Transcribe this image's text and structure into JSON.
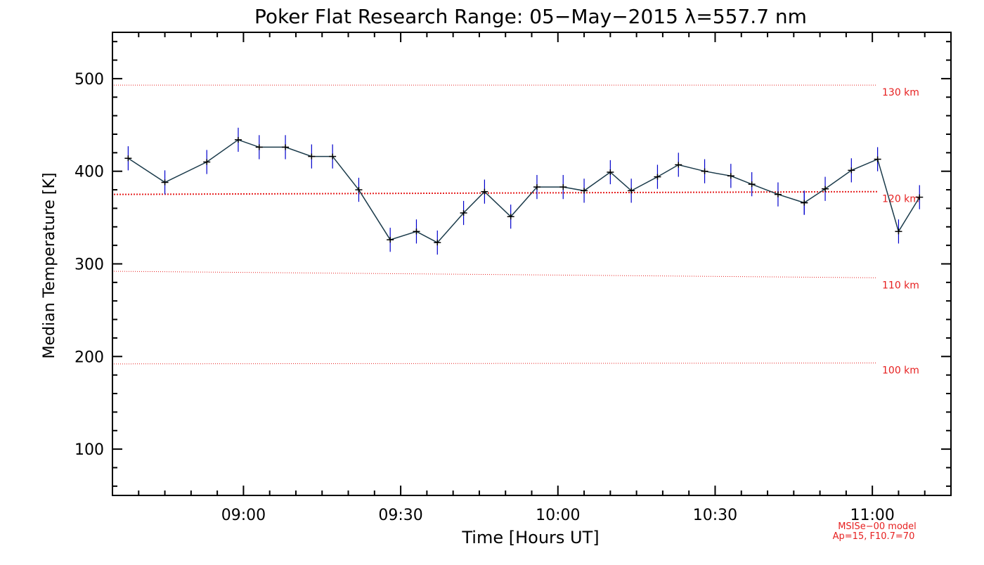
{
  "chart_data": {
    "type": "line",
    "title": "Poker Flat Research Range: 05−May−2015 λ=557.7 nm",
    "xlabel": "Time [Hours UT]",
    "ylabel": "Median Temperature [K]",
    "xlim": [
      "08:35",
      "11:15"
    ],
    "ylim": [
      50,
      550
    ],
    "x_ticks": [
      "09:00",
      "09:30",
      "10:00",
      "10:30",
      "11:00"
    ],
    "y_ticks": [
      "100",
      "200",
      "300",
      "400",
      "500"
    ],
    "grid": false,
    "series": [
      {
        "x": [
          "08:38",
          "08:45",
          "08:53",
          "08:59",
          "09:03",
          "09:08",
          "09:13",
          "09:17",
          "09:22",
          "09:28",
          "09:33",
          "09:37",
          "09:42",
          "09:46",
          "09:51",
          "09:56",
          "10:01",
          "10:05",
          "10:10",
          "10:14",
          "10:19",
          "10:23",
          "10:28",
          "10:33",
          "10:37",
          "10:42",
          "10:47",
          "10:51",
          "10:56",
          "11:01",
          "11:05",
          "11:10",
          "11:14"
        ],
        "y": [
          414,
          388,
          410,
          434,
          426,
          426,
          416,
          416,
          380,
          326,
          335,
          323,
          355,
          378,
          351,
          383,
          383,
          379,
          399,
          379,
          394,
          407,
          400,
          395,
          386,
          375,
          366,
          368,
          386,
          394,
          405,
          415,
          415
        ],
        "error": [
          13,
          13,
          13,
          13,
          13,
          13,
          13,
          13,
          13,
          13,
          13,
          13,
          13,
          13,
          13,
          13,
          13,
          13,
          13,
          13,
          13,
          13,
          13,
          13,
          13,
          13,
          13,
          13,
          13,
          13,
          13,
          13,
          13
        ]
      }
    ],
    "series_extra": {
      "x": [
        "10:51",
        "10:56",
        "11:01",
        "11:05"
      ],
      "y": [
        381,
        401,
        413,
        335
      ],
      "error": [
        13,
        13,
        13,
        13
      ]
    },
    "reference_lines": [
      {
        "label": "130 km",
        "y_start": 493,
        "y_end": 493
      },
      {
        "label": "120 km",
        "y_start": 375,
        "y_end": 378
      },
      {
        "label": "110 km",
        "y_start": 292,
        "y_end": 285
      },
      {
        "label": "100 km",
        "y_start": 192,
        "y_end": 193
      }
    ],
    "model_note": [
      "MSISe−00 model",
      "Ap=15, F10.7=70"
    ],
    "colors": {
      "line": "#1a3a4a",
      "marker": "#000000",
      "error_bar": "#0000cc",
      "reference": "#e62020",
      "axes": "#000000"
    }
  }
}
